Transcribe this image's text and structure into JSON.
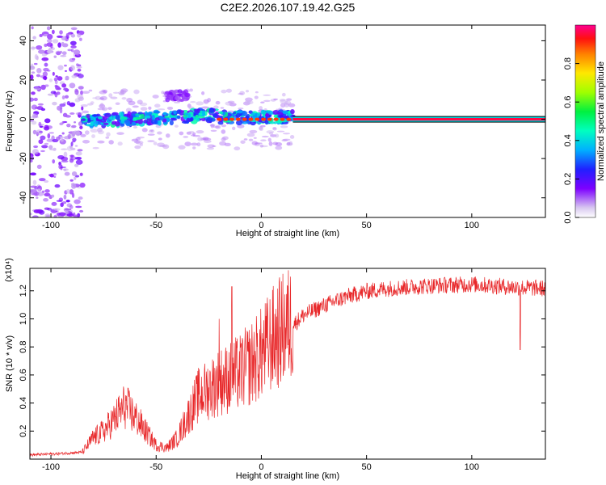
{
  "title": "C2E2.2026.107.19.42.G25",
  "chart_data": [
    {
      "type": "heatmap",
      "xlabel": "Height of straight line (km)",
      "ylabel": "Frequency (Hz)",
      "xlim": [
        -110,
        135
      ],
      "ylim": [
        -50,
        48
      ],
      "x_ticks": [
        -100,
        -50,
        0,
        50,
        100
      ],
      "y_ticks": [
        -40,
        -20,
        0,
        20,
        40
      ],
      "colorbar": {
        "label": "Normalized spectral amplitude",
        "range": [
          0,
          1
        ],
        "ticks": [
          "0.0",
          "0.2",
          "0.4",
          "0.6",
          "0.8"
        ]
      },
      "features": [
        {
          "x_range": [
            -110,
            -85
          ],
          "y_range": [
            -50,
            48
          ],
          "description": "scattered purple blobs",
          "level": 0.1
        },
        {
          "x_range": [
            -85,
            15
          ],
          "center_y": 1,
          "spread": 6,
          "level": 0.35
        },
        {
          "x_range": [
            -45,
            -35
          ],
          "center_y": 12,
          "spread": 5,
          "level": 0.12
        },
        {
          "x_range": [
            15,
            135
          ],
          "center_y": 0,
          "level": 1.0
        }
      ]
    },
    {
      "type": "line",
      "xlabel": "Height of straight line (km)",
      "ylabel": "SNR (10 * v/v)",
      "y_multiplier": "(x10⁴)",
      "xlim": [
        -110,
        135
      ],
      "ylim": [
        0,
        1.36
      ],
      "x_ticks": [
        -100,
        -50,
        0,
        50,
        100
      ],
      "y_ticks": [
        "0.2",
        "0.4",
        "0.6",
        "0.8",
        "1.0",
        "1.2"
      ],
      "color": "#e8282a",
      "envelope": [
        [
          -110,
          0.03
        ],
        [
          -95,
          0.04
        ],
        [
          -85,
          0.05
        ],
        [
          -80,
          0.15
        ],
        [
          -75,
          0.2
        ],
        [
          -70,
          0.28
        ],
        [
          -65,
          0.38
        ],
        [
          -60,
          0.3
        ],
        [
          -55,
          0.2
        ],
        [
          -50,
          0.1
        ],
        [
          -45,
          0.08
        ],
        [
          -40,
          0.15
        ],
        [
          -35,
          0.3
        ],
        [
          -30,
          0.45
        ],
        [
          -25,
          0.5
        ],
        [
          -20,
          0.55
        ],
        [
          -15,
          0.58
        ],
        [
          -10,
          0.62
        ],
        [
          -5,
          0.68
        ],
        [
          0,
          0.75
        ],
        [
          5,
          0.85
        ],
        [
          10,
          0.92
        ],
        [
          15,
          0.98
        ],
        [
          20,
          1.05
        ],
        [
          30,
          1.12
        ],
        [
          40,
          1.18
        ],
        [
          50,
          1.22
        ],
        [
          60,
          1.24
        ],
        [
          80,
          1.26
        ],
        [
          100,
          1.27
        ],
        [
          120,
          1.25
        ],
        [
          135,
          1.24
        ]
      ],
      "spikes": [
        {
          "x": -14,
          "y": 1.23
        },
        {
          "x": -20,
          "y": 1.0
        },
        {
          "x": 123,
          "y": 0.78
        }
      ]
    }
  ]
}
